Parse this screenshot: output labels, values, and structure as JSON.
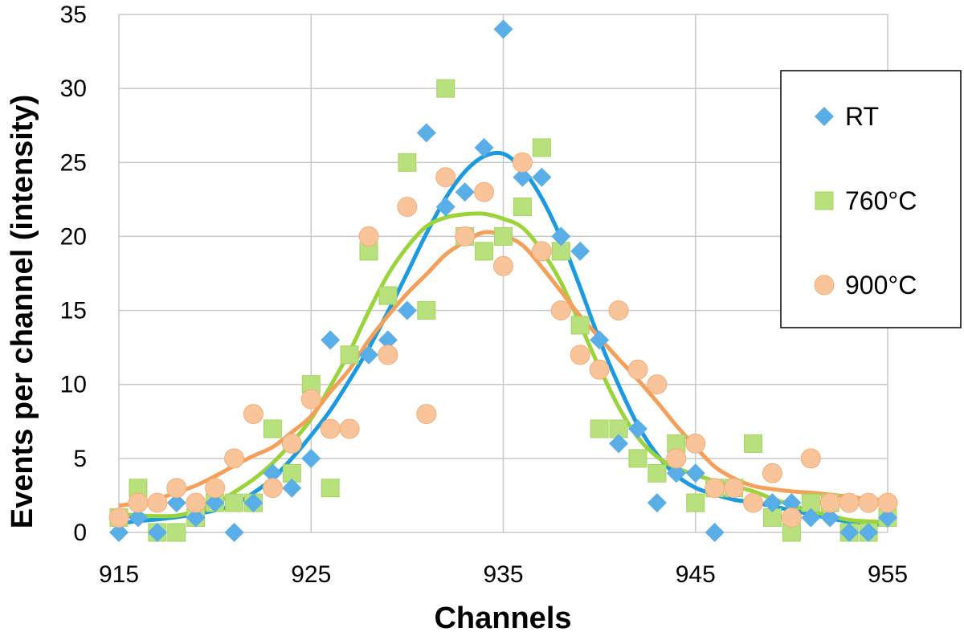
{
  "chart_data": {
    "type": "scatter",
    "xlabel": "Channels",
    "ylabel": "Events per channel (intensity)",
    "xlim": [
      915,
      955
    ],
    "ylim": [
      0,
      35
    ],
    "x_ticks": [
      915,
      925,
      935,
      945,
      955
    ],
    "y_ticks": [
      0,
      5,
      10,
      15,
      20,
      25,
      30,
      35
    ],
    "grid": true,
    "legend_position": "right",
    "series": [
      {
        "name": "RT",
        "marker": "diamond",
        "color": "#5aaee8",
        "fit_color": "#1b9ae0",
        "x": [
          915,
          916,
          917,
          918,
          919,
          920,
          921,
          922,
          923,
          924,
          925,
          926,
          927,
          928,
          929,
          930,
          931,
          932,
          933,
          934,
          935,
          936,
          937,
          938,
          939,
          940,
          941,
          942,
          943,
          944,
          945,
          946,
          947,
          948,
          949,
          950,
          951,
          952,
          953,
          954,
          955
        ],
        "y": [
          0,
          1,
          0,
          2,
          1,
          2,
          0,
          2,
          4,
          3,
          5,
          13,
          7,
          12,
          13,
          15,
          27,
          22,
          23,
          26,
          34,
          24,
          24,
          20,
          19,
          13,
          6,
          7,
          2,
          4,
          4,
          0,
          3,
          2,
          2,
          2,
          1,
          1,
          0,
          0,
          1
        ]
      },
      {
        "name": "760°C",
        "marker": "square",
        "color": "#b8e07c",
        "fit_color": "#9bd43a",
        "x": [
          915,
          916,
          917,
          918,
          919,
          920,
          921,
          922,
          923,
          924,
          925,
          926,
          927,
          928,
          929,
          930,
          931,
          932,
          933,
          934,
          935,
          936,
          937,
          938,
          939,
          940,
          941,
          942,
          943,
          944,
          945,
          946,
          947,
          948,
          949,
          950,
          951,
          952,
          953,
          954,
          955
        ],
        "y": [
          1,
          3,
          0,
          0,
          1,
          2,
          2,
          2,
          7,
          4,
          10,
          3,
          12,
          19,
          16,
          25,
          15,
          30,
          20,
          19,
          20,
          22,
          26,
          19,
          14,
          7,
          7,
          5,
          4,
          6,
          2,
          3,
          3,
          6,
          1,
          0,
          2,
          2,
          0,
          0,
          1
        ]
      },
      {
        "name": "900°C",
        "marker": "circle",
        "color": "#f9c49a",
        "fit_color": "#f5a05a",
        "x": [
          915,
          916,
          917,
          918,
          919,
          920,
          921,
          922,
          923,
          924,
          925,
          926,
          927,
          928,
          929,
          930,
          931,
          932,
          933,
          934,
          935,
          936,
          937,
          938,
          939,
          940,
          941,
          942,
          943,
          944,
          945,
          946,
          947,
          948,
          949,
          950,
          951,
          952,
          953,
          954,
          955
        ],
        "y": [
          1,
          2,
          2,
          3,
          2,
          3,
          5,
          8,
          3,
          6,
          9,
          7,
          7,
          20,
          12,
          22,
          8,
          24,
          20,
          23,
          18,
          25,
          19,
          15,
          12,
          11,
          15,
          11,
          10,
          5,
          6,
          3,
          3,
          2,
          4,
          1,
          5,
          2,
          2,
          2,
          2
        ]
      }
    ]
  }
}
